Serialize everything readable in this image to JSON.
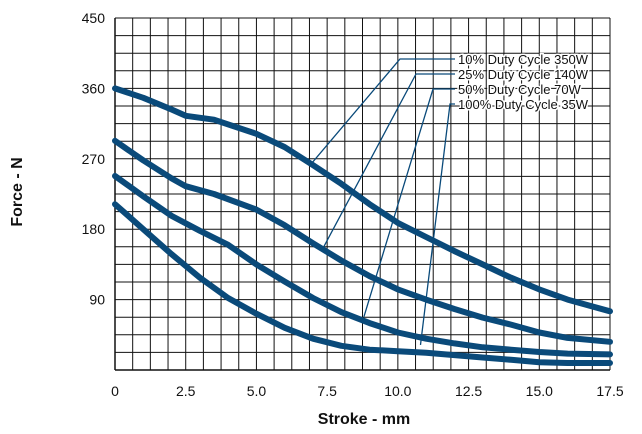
{
  "chart_data": {
    "type": "line",
    "xlabel": "Stroke - mm",
    "ylabel": "Force - N",
    "xlim": [
      0,
      17.5
    ],
    "ylim": [
      0,
      450
    ],
    "xticks": [
      0,
      2.5,
      5.0,
      7.5,
      10.0,
      12.5,
      15.0,
      17.5
    ],
    "xtick_labels": [
      "0",
      "2.5",
      "5.0",
      "7.5",
      "10.0",
      "12.5",
      "15.0",
      "17.5"
    ],
    "yticks": [
      90,
      180,
      270,
      360,
      450
    ],
    "ytick_labels": [
      "90",
      "180",
      "270",
      "360",
      "450"
    ],
    "grid": true,
    "grid_minor_x_step": 0.625,
    "grid_minor_y_step": 22.5,
    "line_color": "#0a4a7a",
    "grid_color": "#111111",
    "series": [
      {
        "name": "10% Duty Cycle 350W",
        "anchor": [
          6.9,
          262
        ],
        "points": [
          [
            0,
            360
          ],
          [
            1,
            348
          ],
          [
            2,
            333
          ],
          [
            2.5,
            325
          ],
          [
            3.5,
            320
          ],
          [
            5,
            302
          ],
          [
            6,
            285
          ],
          [
            7,
            262
          ],
          [
            8,
            238
          ],
          [
            9,
            212
          ],
          [
            10,
            188
          ],
          [
            11,
            170
          ],
          [
            12,
            152
          ],
          [
            13,
            135
          ],
          [
            14,
            118
          ],
          [
            15,
            103
          ],
          [
            16,
            90
          ],
          [
            17.5,
            75
          ]
        ]
      },
      {
        "name": "25% Duty Cycle 140W",
        "anchor": [
          7.3,
          152
        ],
        "points": [
          [
            0,
            293
          ],
          [
            1,
            268
          ],
          [
            2,
            245
          ],
          [
            2.5,
            235
          ],
          [
            3.5,
            225
          ],
          [
            5,
            205
          ],
          [
            6,
            185
          ],
          [
            7,
            162
          ],
          [
            8,
            140
          ],
          [
            9,
            120
          ],
          [
            10,
            103
          ],
          [
            11,
            90
          ],
          [
            12,
            78
          ],
          [
            13,
            67
          ],
          [
            14,
            58
          ],
          [
            15,
            48
          ],
          [
            16,
            41
          ],
          [
            17.5,
            36
          ]
        ]
      },
      {
        "name": "50% Duty Cycle 70W",
        "anchor": [
          8.8,
          68
        ],
        "points": [
          [
            0,
            248
          ],
          [
            1,
            222
          ],
          [
            2,
            197
          ],
          [
            3,
            178
          ],
          [
            4,
            160
          ],
          [
            5,
            135
          ],
          [
            6,
            113
          ],
          [
            7,
            92
          ],
          [
            8,
            74
          ],
          [
            9,
            60
          ],
          [
            10,
            48
          ],
          [
            11,
            40
          ],
          [
            12,
            34
          ],
          [
            13,
            29
          ],
          [
            14,
            26
          ],
          [
            15,
            23
          ],
          [
            16,
            21
          ],
          [
            17.5,
            20
          ]
        ]
      },
      {
        "name": "100% Duty Cycle 35W",
        "anchor": [
          10.8,
          32
        ],
        "points": [
          [
            0,
            212
          ],
          [
            1,
            180
          ],
          [
            2,
            148
          ],
          [
            3,
            118
          ],
          [
            4,
            92
          ],
          [
            5,
            72
          ],
          [
            6,
            54
          ],
          [
            7,
            40
          ],
          [
            8,
            31
          ],
          [
            9,
            26
          ],
          [
            10,
            24
          ],
          [
            11,
            22
          ],
          [
            12,
            19
          ],
          [
            13,
            16
          ],
          [
            14,
            13
          ],
          [
            15,
            10
          ],
          [
            16,
            9
          ],
          [
            17.5,
            9
          ]
        ]
      }
    ],
    "legend_position": "top-right"
  }
}
